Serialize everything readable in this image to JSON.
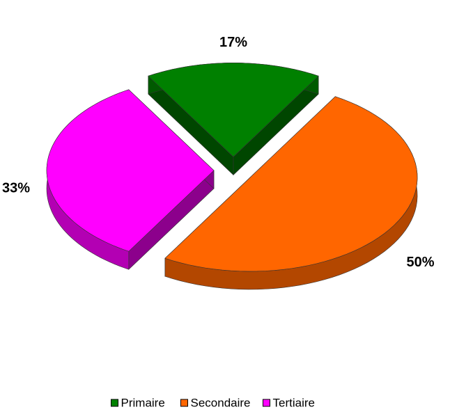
{
  "chart_data": {
    "type": "pie",
    "categories": [
      "Primaire",
      "Secondaire",
      "Tertiaire"
    ],
    "values": [
      17,
      50,
      33
    ],
    "value_labels": [
      "17%",
      "50%",
      "33%"
    ],
    "colors": [
      "#008000",
      "#ff6600",
      "#ff00ff"
    ],
    "legend": "bottom"
  }
}
